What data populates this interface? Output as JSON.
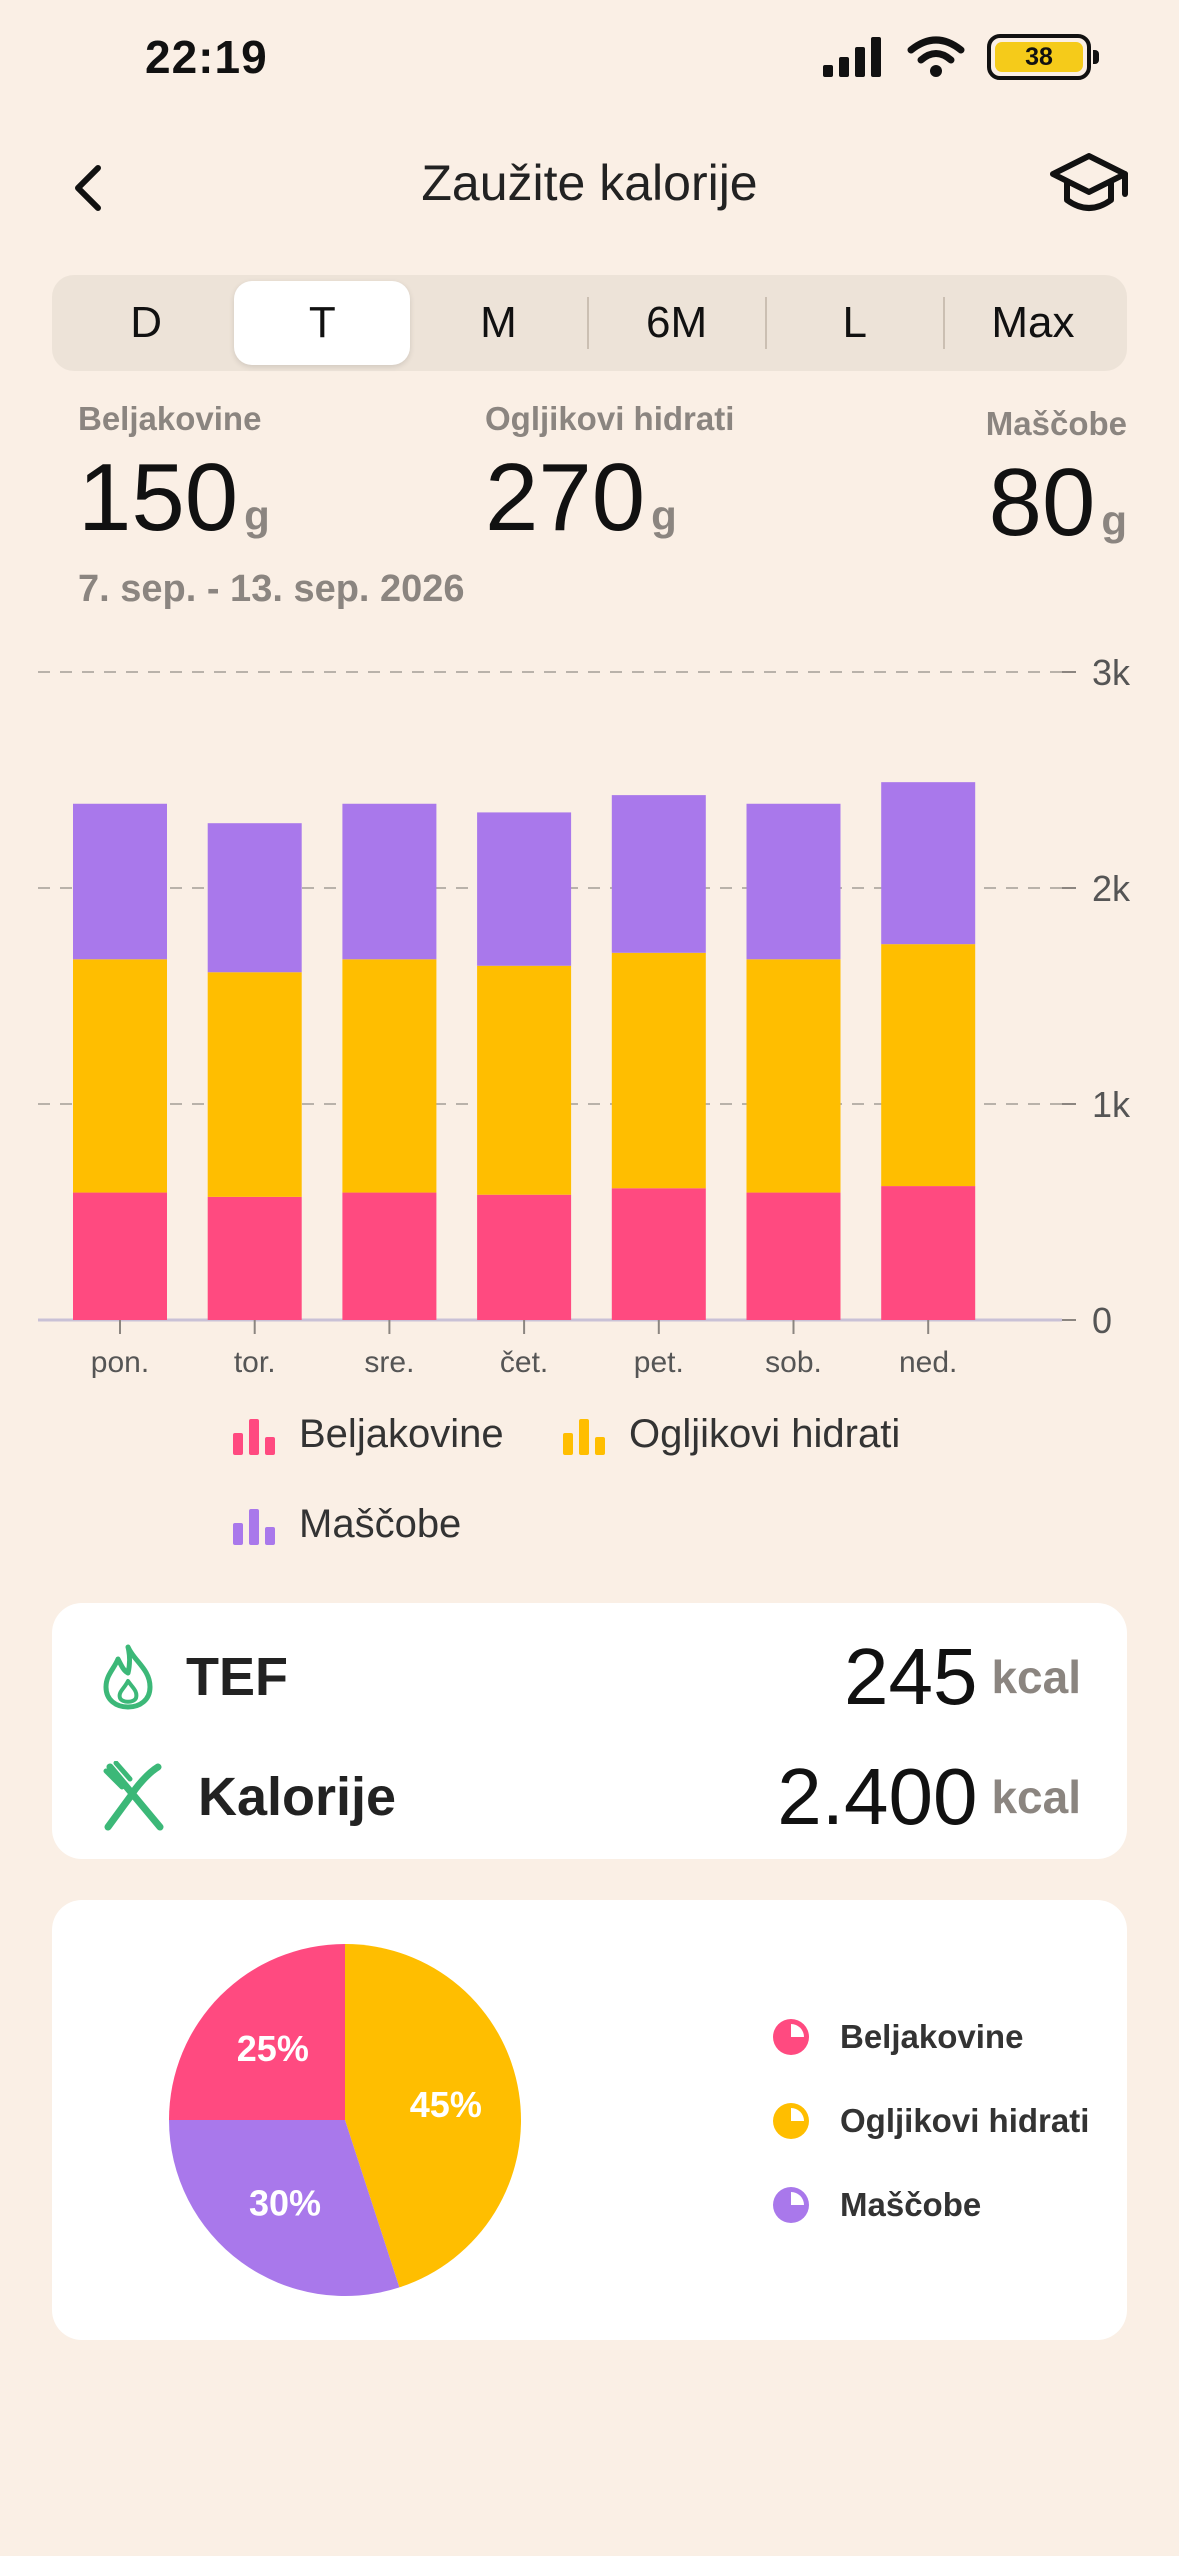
{
  "status": {
    "time": "22:19",
    "battery": "38"
  },
  "header": {
    "title": "Zaužite kalorije"
  },
  "tabs": [
    {
      "label": "D",
      "active": false
    },
    {
      "label": "T",
      "active": true
    },
    {
      "label": "M",
      "active": false
    },
    {
      "label": "6M",
      "active": false
    },
    {
      "label": "L",
      "active": false
    },
    {
      "label": "Max",
      "active": false
    }
  ],
  "summary": {
    "protein": {
      "label": "Beljakovine",
      "value": "150",
      "unit": "g"
    },
    "carbs": {
      "label": "Ogljikovi hidrati",
      "value": "270",
      "unit": "g"
    },
    "fat": {
      "label": "Maščobe",
      "value": "80",
      "unit": "g"
    },
    "date_range": "7. sep. - 13. sep. 2026"
  },
  "colors": {
    "protein": "#FF4A80",
    "carbs": "#FFBE00",
    "fat": "#A978EB",
    "icon_green": "#3CB878"
  },
  "legend": {
    "protein": "Beljakovine",
    "carbs": "Ogljikovi hidrati",
    "fat": "Maščobe"
  },
  "chart_data": [
    {
      "type": "bar",
      "stacked": true,
      "categories": [
        "pon.",
        "tor.",
        "sre.",
        "čet.",
        "pet.",
        "sob.",
        "ned."
      ],
      "series": [
        {
          "name": "Beljakovine",
          "values": [
            590,
            570,
            590,
            580,
            610,
            590,
            620
          ]
        },
        {
          "name": "Ogljikovi hidrati",
          "values": [
            1080,
            1040,
            1080,
            1060,
            1090,
            1080,
            1120
          ]
        },
        {
          "name": "Maščobe",
          "values": [
            720,
            690,
            720,
            710,
            730,
            720,
            750
          ]
        }
      ],
      "ylim": [
        0,
        3000
      ],
      "yticks": [
        "0",
        "1k",
        "2k",
        "3k"
      ],
      "grid": true,
      "legend_position": "bottom"
    },
    {
      "type": "pie",
      "labels": [
        "Beljakovine",
        "Ogljikovi hidrati",
        "Maščobe"
      ],
      "values": [
        25,
        45,
        30
      ],
      "value_labels": [
        "25%",
        "45%",
        "30%"
      ]
    }
  ],
  "metrics": {
    "tef": {
      "label": "TEF",
      "value": "245",
      "unit": "kcal"
    },
    "calories": {
      "label": "Kalorije",
      "value": "2.400",
      "unit": "kcal"
    }
  }
}
